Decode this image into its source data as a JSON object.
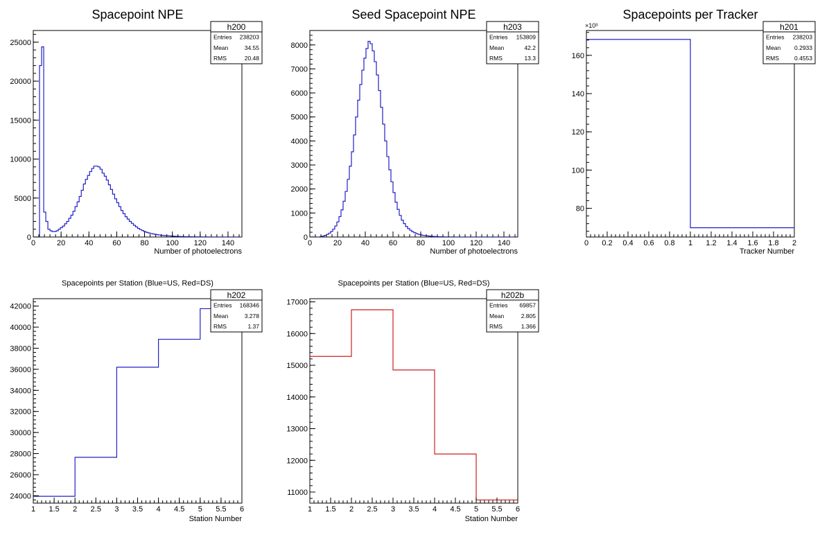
{
  "charts": [
    {
      "id": "h200",
      "chart_data": {
        "type": "histogram",
        "title": "Spacepoint NPE",
        "xlabel": "Number of photoelectrons",
        "ylabel": "",
        "xlim": [
          0,
          150
        ],
        "ylim": [
          0,
          26500
        ],
        "xticks": [
          0,
          20,
          40,
          60,
          80,
          100,
          120,
          140
        ],
        "yticks": [
          0,
          5000,
          10000,
          15000,
          20000,
          25000
        ],
        "line_color": "#1f1fc8",
        "bin_width": 1.5,
        "x_start": 0,
        "values": [
          0,
          0,
          0,
          22000,
          24400,
          3200,
          2000,
          1000,
          800,
          700,
          700,
          800,
          1000,
          1200,
          1400,
          1700,
          2000,
          2400,
          2800,
          3300,
          3900,
          4500,
          5200,
          6000,
          6800,
          7400,
          7900,
          8400,
          8800,
          9100,
          9100,
          9000,
          8700,
          8200,
          7800,
          7300,
          6700,
          6100,
          5500,
          4900,
          4400,
          3900,
          3400,
          3000,
          2600,
          2300,
          2000,
          1750,
          1500,
          1300,
          1100,
          950,
          820,
          700,
          600,
          520,
          450,
          400,
          350,
          300,
          260,
          230,
          200,
          180,
          160,
          140,
          120,
          100,
          90,
          80,
          70,
          60,
          50,
          45,
          40,
          35,
          30,
          25,
          20,
          18,
          15,
          12,
          10,
          8,
          6,
          5,
          4,
          3,
          2,
          1,
          0,
          0,
          0,
          0,
          0,
          0,
          0,
          0,
          0,
          0
        ]
      },
      "stats": {
        "name": "h200",
        "rows": [
          [
            "Entries",
            "238203"
          ],
          [
            "Mean",
            "34.55"
          ],
          [
            "RMS",
            "20.48"
          ]
        ]
      }
    },
    {
      "id": "h203",
      "chart_data": {
        "type": "histogram",
        "title": "Seed Spacepoint NPE",
        "xlabel": "Number of photoelectrons",
        "ylabel": "",
        "xlim": [
          0,
          150
        ],
        "ylim": [
          0,
          8600
        ],
        "xticks": [
          0,
          20,
          40,
          60,
          80,
          100,
          120,
          140
        ],
        "yticks": [
          0,
          1000,
          2000,
          3000,
          4000,
          5000,
          6000,
          7000,
          8000
        ],
        "line_color": "#1f1fc8",
        "bin_width": 1.5,
        "x_start": 0,
        "values": [
          0,
          0,
          0,
          0,
          0,
          20,
          40,
          70,
          110,
          160,
          230,
          330,
          460,
          630,
          850,
          1130,
          1490,
          1900,
          2400,
          2950,
          3550,
          4250,
          5000,
          5700,
          6350,
          6950,
          7450,
          7850,
          8150,
          8050,
          7750,
          7300,
          6750,
          6100,
          5400,
          4700,
          4000,
          3350,
          2800,
          2300,
          1850,
          1450,
          1150,
          900,
          700,
          560,
          440,
          350,
          280,
          220,
          180,
          140,
          110,
          90,
          70,
          60,
          50,
          40,
          30,
          25,
          20,
          16,
          12,
          10,
          8,
          6,
          5,
          4,
          3,
          2,
          1,
          0,
          0,
          0,
          0,
          0,
          0,
          0,
          0,
          0,
          0,
          0,
          0,
          0,
          0,
          0,
          0,
          0,
          0,
          0,
          0,
          0,
          0,
          0,
          0,
          0,
          0,
          0,
          0,
          0
        ]
      },
      "stats": {
        "name": "h203",
        "rows": [
          [
            "Entries",
            "153809"
          ],
          [
            "Mean",
            "42.2"
          ],
          [
            "RMS",
            "13.3"
          ]
        ]
      }
    },
    {
      "id": "h201",
      "chart_data": {
        "type": "histogram",
        "title": "Spacepoints per Tracker",
        "xlabel": "Tracker Number",
        "ylabel": "",
        "y_multiplier": "×10³",
        "xlim": [
          0,
          2
        ],
        "ylim": [
          65,
          173
        ],
        "xticks": [
          "0",
          "0.2",
          "0.4",
          "0.6",
          "0.8",
          "1",
          "1.2",
          "1.4",
          "1.6",
          "1.8",
          "2"
        ],
        "xtick_values": [
          0,
          0.2,
          0.4,
          0.6,
          0.8,
          1.0,
          1.2,
          1.4,
          1.6,
          1.8,
          2.0
        ],
        "yticks": [
          80,
          100,
          120,
          140,
          160
        ],
        "line_color": "#1f1fc8",
        "bin_width": 1,
        "x_start": 0,
        "values": [
          168.346,
          69.857
        ]
      },
      "stats": {
        "name": "h201",
        "rows": [
          [
            "Entries",
            "238203"
          ],
          [
            "Mean",
            "0.2933"
          ],
          [
            "RMS",
            "0.4553"
          ]
        ]
      }
    },
    {
      "id": "h202",
      "chart_data": {
        "type": "histogram",
        "title": "Spacepoints per Station (Blue=US, Red=DS)",
        "xlabel": "Station Number",
        "ylabel": "",
        "xlim": [
          1,
          6
        ],
        "ylim": [
          23300,
          42700
        ],
        "xticks": [
          "1",
          "1.5",
          "2",
          "2.5",
          "3",
          "3.5",
          "4",
          "4.5",
          "5",
          "5.5",
          "6"
        ],
        "xtick_values": [
          1,
          1.5,
          2,
          2.5,
          3,
          3.5,
          4,
          4.5,
          5,
          5.5,
          6
        ],
        "yticks": [
          24000,
          26000,
          28000,
          30000,
          32000,
          34000,
          36000,
          38000,
          40000,
          42000
        ],
        "line_color": "#1f1fc8",
        "bin_width": 1,
        "x_start": 1,
        "values": [
          23950,
          27650,
          36200,
          38850,
          41750
        ]
      },
      "stats": {
        "name": "h202",
        "rows": [
          [
            "Entries",
            "168346"
          ],
          [
            "Mean",
            "3.278"
          ],
          [
            "RMS",
            "1.37"
          ]
        ]
      }
    },
    {
      "id": "h202b",
      "chart_data": {
        "type": "histogram",
        "title": "Spacepoints per Station (Blue=US, Red=DS)",
        "xlabel": "Station Number",
        "ylabel": "",
        "xlim": [
          1,
          6
        ],
        "ylim": [
          10650,
          17100
        ],
        "xticks": [
          "1",
          "1.5",
          "2",
          "2.5",
          "3",
          "3.5",
          "4",
          "4.5",
          "5",
          "5.5",
          "6"
        ],
        "xtick_values": [
          1,
          1.5,
          2,
          2.5,
          3,
          3.5,
          4,
          4.5,
          5,
          5.5,
          6
        ],
        "yticks": [
          11000,
          12000,
          13000,
          14000,
          15000,
          16000,
          17000
        ],
        "line_color": "#cc1f1f",
        "bin_width": 1,
        "x_start": 1,
        "values": [
          15280,
          16750,
          14850,
          12200,
          10750
        ]
      },
      "stats": {
        "name": "h202b",
        "rows": [
          [
            "Entries",
            "69857"
          ],
          [
            "Mean",
            "2.805"
          ],
          [
            "RMS",
            "1.366"
          ]
        ]
      }
    }
  ]
}
